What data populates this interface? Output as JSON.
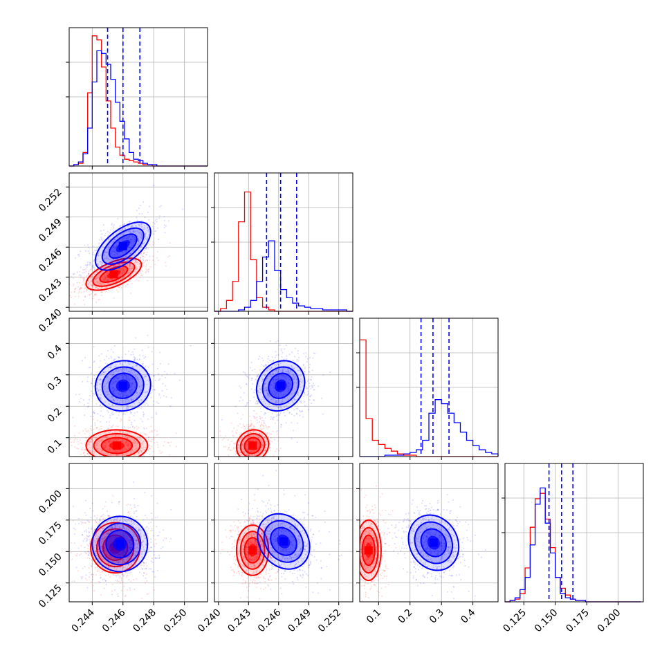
{
  "chart_data": {
    "type": "corner",
    "colors": {
      "blue": "#0000ff",
      "red": "#ff0000"
    },
    "grid": true,
    "parameters": [
      {
        "range": [
          0.2425,
          0.2515
        ],
        "ticks": [
          0.244,
          0.246,
          0.248,
          0.25
        ],
        "tick_labels": [
          "0.244",
          "0.246",
          "0.248",
          "0.250"
        ],
        "quantiles_blue": [
          0.245,
          0.246,
          0.2471
        ],
        "hist_blue": {
          "edges_start": 0.2425,
          "bin": 0.0003,
          "values": [
            0.0,
            0.01,
            0.03,
            0.09,
            0.28,
            0.62,
            0.85,
            0.83,
            0.75,
            0.64,
            0.47,
            0.33,
            0.2,
            0.1,
            0.05,
            0.04,
            0.02,
            0.01,
            0.01,
            0.0,
            0.0,
            0.0,
            0.0,
            0.0,
            0.0,
            0.0,
            0.0,
            0.0,
            0.0,
            0.0
          ]
        },
        "hist_red": {
          "edges_start": 0.2425,
          "bin": 0.0003,
          "values": [
            0.0,
            0.01,
            0.02,
            0.1,
            0.54,
            0.96,
            0.93,
            0.73,
            0.48,
            0.28,
            0.14,
            0.08,
            0.05,
            0.04,
            0.03,
            0.02,
            0.01,
            0.01,
            0.0,
            0.0,
            0.0,
            0.0,
            0.0,
            0.0,
            0.0,
            0.0,
            0.0,
            0.0,
            0.0,
            0.0
          ]
        }
      },
      {
        "range": [
          0.2396,
          0.2534
        ],
        "ticks": [
          0.24,
          0.243,
          0.246,
          0.249,
          0.252
        ],
        "tick_labels": [
          "0.240",
          "0.243",
          "0.246",
          "0.249",
          "0.252"
        ],
        "quantiles_blue": [
          0.2448,
          0.2462,
          0.2478
        ],
        "hist_blue": {
          "edges_start": 0.2396,
          "bin": 0.0006,
          "values": [
            0.0,
            0.0,
            0.0,
            0.0,
            0.01,
            0.03,
            0.08,
            0.22,
            0.4,
            0.52,
            0.3,
            0.16,
            0.1,
            0.06,
            0.04,
            0.03,
            0.02,
            0.02,
            0.01,
            0.01,
            0.01,
            0.01,
            0.0
          ]
        },
        "hist_red": {
          "edges_start": 0.2396,
          "bin": 0.0006,
          "values": [
            0.0,
            0.02,
            0.08,
            0.22,
            0.66,
            0.88,
            0.38,
            0.1,
            0.03,
            0.01,
            0.0,
            0.0,
            0.0,
            0.0,
            0.0,
            0.0,
            0.0,
            0.0,
            0.0,
            0.0,
            0.0,
            0.0,
            0.0
          ]
        }
      },
      {
        "range": [
          0.04,
          0.48
        ],
        "ticks": [
          0.1,
          0.2,
          0.3,
          0.4
        ],
        "tick_labels": [
          "0.1",
          "0.2",
          "0.3",
          "0.4"
        ],
        "quantiles_blue": [
          0.235,
          0.273,
          0.324
        ],
        "hist_blue": {
          "edges_start": 0.04,
          "bin": 0.02,
          "values": [
            0.0,
            0.0,
            0.0,
            0.0,
            0.01,
            0.01,
            0.01,
            0.02,
            0.03,
            0.05,
            0.12,
            0.32,
            0.42,
            0.39,
            0.32,
            0.25,
            0.18,
            0.12,
            0.08,
            0.05,
            0.03,
            0.02,
            0.0
          ]
        },
        "hist_red": {
          "edges_start": 0.04,
          "bin": 0.02,
          "values": [
            0.86,
            0.28,
            0.12,
            0.09,
            0.06,
            0.04,
            0.02,
            0.01,
            0.01,
            0.0,
            0.0,
            0.0,
            0.0,
            0.0,
            0.0,
            0.0,
            0.0,
            0.0,
            0.0,
            0.0,
            0.0,
            0.0,
            0.0
          ]
        }
      },
      {
        "range": [
          0.11,
          0.22
        ],
        "ticks": [
          0.125,
          0.15,
          0.175,
          0.2
        ],
        "tick_labels": [
          "0.125",
          "0.150",
          "0.175",
          "0.200"
        ],
        "quantiles_blue": [
          0.145,
          0.155,
          0.164
        ],
        "hist_blue": {
          "edges_start": 0.11,
          "bin": 0.004,
          "values": [
            0.0,
            0.01,
            0.03,
            0.09,
            0.18,
            0.42,
            0.72,
            0.84,
            0.58,
            0.36,
            0.18,
            0.06,
            0.03,
            0.02,
            0.01,
            0.01,
            0.0,
            0.0,
            0.0,
            0.0,
            0.0,
            0.0,
            0.0,
            0.0,
            0.0,
            0.0,
            0.0
          ]
        },
        "hist_red": {
          "edges_start": 0.11,
          "bin": 0.004,
          "values": [
            0.0,
            0.01,
            0.02,
            0.06,
            0.25,
            0.55,
            0.76,
            0.8,
            0.61,
            0.4,
            0.18,
            0.1,
            0.05,
            0.02,
            0.01,
            0.01,
            0.0,
            0.0,
            0.0,
            0.0,
            0.0,
            0.0,
            0.0,
            0.0,
            0.0,
            0.0,
            0.0
          ]
        }
      }
    ],
    "joint": [
      {
        "row": 1,
        "col": 0,
        "blue": {
          "center": [
            0.246,
            0.2461
          ],
          "sigma": [
            0.0009,
            0.0012
          ],
          "rho": 0.6
        },
        "red": {
          "center": [
            0.2454,
            0.2433
          ],
          "sigma": [
            0.0009,
            0.0008
          ],
          "rho": 0.6
        }
      },
      {
        "row": 2,
        "col": 0,
        "blue": {
          "center": [
            0.246,
            0.265
          ],
          "sigma": [
            0.0009,
            0.04
          ],
          "rho": 0.05
        },
        "red": {
          "center": [
            0.2456,
            0.075
          ],
          "sigma": [
            0.001,
            0.025
          ],
          "rho": 0.0
        }
      },
      {
        "row": 2,
        "col": 1,
        "blue": {
          "center": [
            0.2462,
            0.265
          ],
          "sigma": [
            0.0012,
            0.04
          ],
          "rho": 0.15
        },
        "red": {
          "center": [
            0.2434,
            0.075
          ],
          "sigma": [
            0.0008,
            0.025
          ],
          "rho": 0.1
        }
      },
      {
        "row": 3,
        "col": 0,
        "blue": {
          "center": [
            0.2458,
            0.156
          ],
          "sigma": [
            0.0009,
            0.011
          ],
          "rho": 0.0
        },
        "red": {
          "center": [
            0.2455,
            0.153
          ],
          "sigma": [
            0.0008,
            0.01
          ],
          "rho": 0.0
        }
      },
      {
        "row": 3,
        "col": 1,
        "blue": {
          "center": [
            0.2465,
            0.158
          ],
          "sigma": [
            0.0013,
            0.011
          ],
          "rho": -0.2
        },
        "red": {
          "center": [
            0.2434,
            0.151
          ],
          "sigma": [
            0.0008,
            0.01
          ],
          "rho": 0.0
        }
      },
      {
        "row": 3,
        "col": 2,
        "blue": {
          "center": [
            0.275,
            0.157
          ],
          "sigma": [
            0.04,
            0.011
          ],
          "rho": -0.15
        },
        "red": {
          "center": [
            0.068,
            0.151
          ],
          "sigma": [
            0.02,
            0.012
          ],
          "rho": 0.0
        }
      }
    ]
  }
}
